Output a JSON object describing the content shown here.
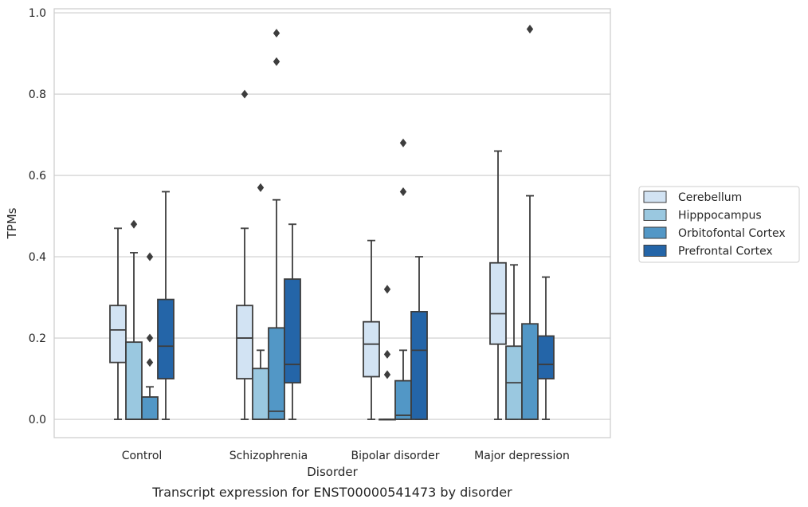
{
  "chart_data": {
    "type": "box",
    "caption": "Transcript expression for ENST00000541473 by disorder",
    "xlabel": "Disorder",
    "ylabel": "TPMs",
    "ylim": [
      -0.045,
      1.01
    ],
    "yticks": [
      0.0,
      0.2,
      0.4,
      0.6,
      0.8,
      1.0
    ],
    "ytick_labels": [
      "0.0",
      "0.2",
      "0.4",
      "0.6",
      "0.8",
      "1.0"
    ],
    "grid": "horizontal",
    "legend_position": "right",
    "categories": [
      "Control",
      "Schizophrenia",
      "Bipolar disorder",
      "Major depression"
    ],
    "series": [
      {
        "name": "Cerebellum",
        "color": "#d2e3f3",
        "boxes": [
          {
            "whisker_low": 0.0,
            "q1": 0.14,
            "median": 0.22,
            "q3": 0.28,
            "whisker_high": 0.47,
            "outliers": []
          },
          {
            "whisker_low": 0.0,
            "q1": 0.1,
            "median": 0.2,
            "q3": 0.28,
            "whisker_high": 0.47,
            "outliers": [
              0.8
            ]
          },
          {
            "whisker_low": 0.0,
            "q1": 0.105,
            "median": 0.185,
            "q3": 0.24,
            "whisker_high": 0.44,
            "outliers": []
          },
          {
            "whisker_low": 0.0,
            "q1": 0.185,
            "median": 0.26,
            "q3": 0.385,
            "whisker_high": 0.66,
            "outliers": []
          }
        ]
      },
      {
        "name": "Hipppocampus",
        "color": "#9ac8e0",
        "boxes": [
          {
            "whisker_low": 0.0,
            "q1": 0.0,
            "median": 0.0,
            "q3": 0.19,
            "whisker_high": 0.41,
            "outliers": [
              0.48
            ]
          },
          {
            "whisker_low": 0.0,
            "q1": 0.0,
            "median": 0.0,
            "q3": 0.125,
            "whisker_high": 0.17,
            "outliers": [
              0.57
            ]
          },
          {
            "whisker_low": 0.0,
            "q1": 0.0,
            "median": 0.0,
            "q3": 0.0,
            "whisker_high": 0.0,
            "outliers": [
              0.11,
              0.16,
              0.32
            ]
          },
          {
            "whisker_low": 0.0,
            "q1": 0.0,
            "median": 0.09,
            "q3": 0.18,
            "whisker_high": 0.38,
            "outliers": []
          }
        ]
      },
      {
        "name": "Orbitofontal Cortex",
        "color": "#5297c6",
        "boxes": [
          {
            "whisker_low": 0.0,
            "q1": 0.0,
            "median": 0.0,
            "q3": 0.055,
            "whisker_high": 0.08,
            "outliers": [
              0.14,
              0.2,
              0.4
            ]
          },
          {
            "whisker_low": 0.0,
            "q1": 0.0,
            "median": 0.02,
            "q3": 0.225,
            "whisker_high": 0.54,
            "outliers": [
              0.88,
              0.95
            ]
          },
          {
            "whisker_low": 0.0,
            "q1": 0.0,
            "median": 0.01,
            "q3": 0.095,
            "whisker_high": 0.17,
            "outliers": [
              0.56,
              0.68
            ]
          },
          {
            "whisker_low": 0.0,
            "q1": 0.0,
            "median": 0.0,
            "q3": 0.235,
            "whisker_high": 0.55,
            "outliers": [
              0.96
            ]
          }
        ]
      },
      {
        "name": "Prefrontal Cortex",
        "color": "#2465a8",
        "boxes": [
          {
            "whisker_low": 0.0,
            "q1": 0.1,
            "median": 0.18,
            "q3": 0.295,
            "whisker_high": 0.56,
            "outliers": []
          },
          {
            "whisker_low": 0.0,
            "q1": 0.09,
            "median": 0.135,
            "q3": 0.345,
            "whisker_high": 0.48,
            "outliers": []
          },
          {
            "whisker_low": 0.0,
            "q1": 0.0,
            "median": 0.17,
            "q3": 0.265,
            "whisker_high": 0.4,
            "outliers": []
          },
          {
            "whisker_low": 0.0,
            "q1": 0.1,
            "median": 0.135,
            "q3": 0.205,
            "whisker_high": 0.35,
            "outliers": []
          }
        ]
      }
    ]
  }
}
